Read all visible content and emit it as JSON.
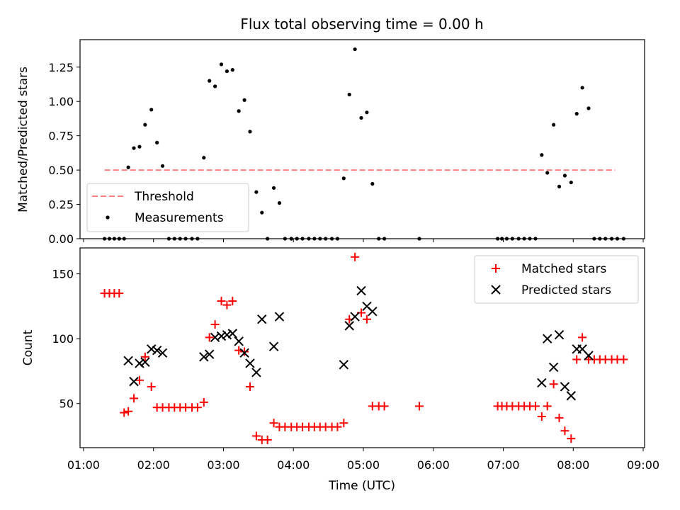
{
  "figure_title": "Flux total observing time = 0.00 h",
  "chart_data": [
    {
      "type": "scatter",
      "panel": "top",
      "ylabel": "Matched/Predicted stars",
      "xlim": [
        0.95,
        9.02
      ],
      "ylim": [
        0,
        1.45
      ],
      "yticks": [
        0.0,
        0.25,
        0.5,
        0.75,
        1.0,
        1.25
      ],
      "ytick_labels": [
        "0.00",
        "0.25",
        "0.50",
        "0.75",
        "1.00",
        "1.25"
      ],
      "legend_position": "lower-left",
      "threshold": {
        "name": "Threshold",
        "value": 0.5,
        "x_range": [
          1.3,
          8.6
        ],
        "color": "#ff8080"
      },
      "series": [
        {
          "name": "Measurements",
          "color": "#000000",
          "marker": "dot",
          "x": [
            1.3,
            1.37,
            1.44,
            1.51,
            1.58,
            1.64,
            1.72,
            1.8,
            1.88,
            1.97,
            2.05,
            2.13,
            2.22,
            2.3,
            2.38,
            2.46,
            2.55,
            2.63,
            2.72,
            2.8,
            2.88,
            2.97,
            3.05,
            3.13,
            3.22,
            3.3,
            3.38,
            3.47,
            3.55,
            3.63,
            3.72,
            3.8,
            3.88,
            3.97,
            4.05,
            4.13,
            4.22,
            4.3,
            4.38,
            4.46,
            4.55,
            4.63,
            4.72,
            4.8,
            4.88,
            4.97,
            5.05,
            5.13,
            5.22,
            5.3,
            5.8,
            6.92,
            6.98,
            7.05,
            7.13,
            7.22,
            7.3,
            7.38,
            7.46,
            7.55,
            7.63,
            7.72,
            7.8,
            7.88,
            7.97,
            8.05,
            8.13,
            8.22,
            8.3,
            8.38,
            8.46,
            8.55,
            8.63,
            8.72
          ],
          "y": [
            0,
            0,
            0,
            0,
            0,
            0.52,
            0.66,
            0.67,
            0.83,
            0.94,
            0.7,
            0.53,
            0,
            0,
            0,
            0,
            0,
            0,
            0.59,
            1.15,
            1.11,
            1.27,
            1.22,
            1.23,
            0.93,
            1.01,
            0.78,
            0.34,
            0.19,
            0,
            0.37,
            0.26,
            0,
            0,
            0,
            0,
            0,
            0,
            0,
            0,
            0,
            0,
            0.44,
            1.05,
            1.38,
            0.88,
            0.92,
            0.4,
            0,
            0,
            0,
            0,
            0,
            0,
            0,
            0,
            0,
            0,
            0,
            0.61,
            0.48,
            0.83,
            0.38,
            0.46,
            0.41,
            0.91,
            1.1,
            0.95,
            0,
            0,
            0,
            0,
            0,
            0
          ]
        }
      ]
    },
    {
      "type": "scatter",
      "panel": "bottom",
      "xlabel": "Time (UTC)",
      "ylabel": "Count",
      "xlim": [
        0.95,
        9.02
      ],
      "ylim": [
        16,
        170
      ],
      "xticks": [
        1,
        2,
        3,
        4,
        5,
        6,
        7,
        8,
        9
      ],
      "xtick_labels": [
        "01:00",
        "02:00",
        "03:00",
        "04:00",
        "05:00",
        "06:00",
        "07:00",
        "08:00",
        "09:00"
      ],
      "yticks": [
        50,
        100,
        150
      ],
      "ytick_labels": [
        "50",
        "100",
        "150"
      ],
      "legend_position": "upper-right",
      "series": [
        {
          "name": "Matched stars",
          "color": "#ff0000",
          "marker": "plus",
          "x": [
            1.3,
            1.37,
            1.44,
            1.51,
            1.58,
            1.64,
            1.72,
            1.8,
            1.88,
            1.97,
            2.05,
            2.13,
            2.22,
            2.3,
            2.38,
            2.46,
            2.55,
            2.63,
            2.72,
            2.8,
            2.88,
            2.97,
            3.05,
            3.13,
            3.22,
            3.3,
            3.38,
            3.47,
            3.55,
            3.63,
            3.72,
            3.8,
            3.88,
            3.97,
            4.05,
            4.13,
            4.22,
            4.3,
            4.38,
            4.46,
            4.55,
            4.63,
            4.72,
            4.8,
            4.88,
            4.97,
            5.05,
            5.13,
            5.22,
            5.3,
            5.8,
            6.92,
            6.98,
            7.05,
            7.13,
            7.22,
            7.3,
            7.38,
            7.46,
            7.55,
            7.63,
            7.72,
            7.8,
            7.88,
            7.97,
            8.05,
            8.13,
            8.22,
            8.3,
            8.38,
            8.46,
            8.55,
            8.63,
            8.72
          ],
          "y": [
            135,
            135,
            135,
            135,
            43,
            44,
            54,
            68,
            86,
            63,
            47,
            47,
            47,
            47,
            47,
            47,
            47,
            47,
            51,
            101,
            111,
            129,
            126,
            129,
            91,
            90,
            63,
            25,
            22,
            22,
            35,
            32,
            32,
            32,
            32,
            32,
            32,
            32,
            32,
            32,
            32,
            32,
            35,
            115,
            163,
            120,
            115,
            48,
            48,
            48,
            48,
            48,
            48,
            48,
            48,
            48,
            48,
            48,
            48,
            40,
            48,
            65,
            39,
            29,
            23,
            84,
            101,
            84,
            84,
            84,
            84,
            84,
            84,
            84
          ]
        },
        {
          "name": "Predicted stars",
          "color": "#000000",
          "marker": "x",
          "x": [
            1.64,
            1.72,
            1.8,
            1.88,
            1.97,
            2.05,
            2.13,
            2.72,
            2.8,
            2.88,
            2.97,
            3.05,
            3.13,
            3.22,
            3.3,
            3.38,
            3.47,
            3.55,
            3.72,
            3.8,
            4.72,
            4.8,
            4.88,
            4.97,
            5.05,
            5.13,
            7.55,
            7.63,
            7.72,
            7.8,
            7.88,
            7.97,
            8.05,
            8.13,
            8.22
          ],
          "y": [
            83,
            67,
            81,
            82,
            92,
            91,
            89,
            86,
            88,
            101,
            102,
            103,
            104,
            98,
            89,
            81,
            74,
            115,
            94,
            117,
            80,
            110,
            117,
            137,
            125,
            121,
            66,
            100,
            78,
            103,
            63,
            56,
            92,
            92,
            87
          ]
        }
      ]
    }
  ]
}
